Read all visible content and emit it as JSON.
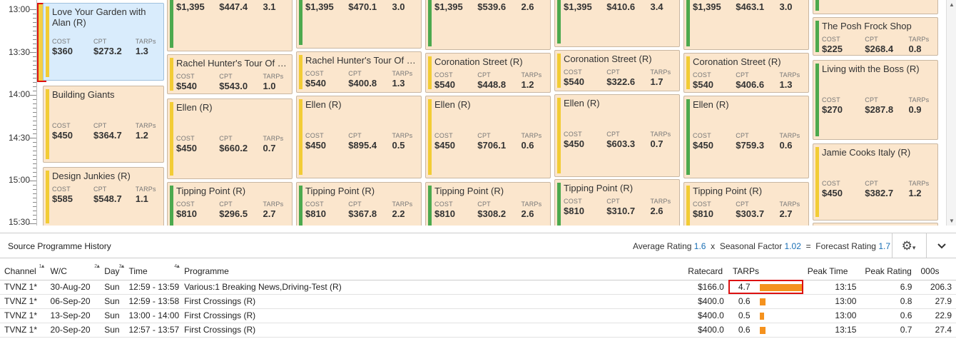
{
  "timeline": {
    "labels": [
      "13:00",
      "13:30",
      "14:00",
      "14:30",
      "15:00",
      "15:30"
    ]
  },
  "columns": [
    {
      "cards": [
        {
          "title": "Love Your Garden with Alan (R)",
          "bar": "yellow",
          "selected": true,
          "cost": "$360",
          "cpt": "$273.2",
          "tarps": "1.3"
        },
        {
          "title": "Building Giants",
          "bar": "yellow",
          "cost": "$450",
          "cpt": "$364.7",
          "tarps": "1.2"
        },
        {
          "title": "Design Junkies (R)",
          "bar": "yellow",
          "cost": "$585",
          "cpt": "$548.7",
          "tarps": "1.1"
        }
      ]
    },
    {
      "cards": [
        {
          "title": "",
          "bar": "green",
          "cost": "$1,395",
          "cpt": "$447.4",
          "tarps": "3.1",
          "top_clipped": true
        },
        {
          "title": "Rachel Hunter's Tour Of B...",
          "bar": "yellow",
          "cost": "$540",
          "cpt": "$543.0",
          "tarps": "1.0"
        },
        {
          "title": "Ellen (R)",
          "bar": "yellow",
          "cost": "$450",
          "cpt": "$660.2",
          "tarps": "0.7"
        },
        {
          "title": "Tipping Point (R)",
          "bar": "green",
          "cost": "$810",
          "cpt": "$296.5",
          "tarps": "2.7"
        }
      ]
    },
    {
      "cards": [
        {
          "title": "",
          "bar": "green",
          "cost": "$1,395",
          "cpt": "$470.1",
          "tarps": "3.0",
          "top_clipped": true
        },
        {
          "title": "Rachel Hunter's Tour Of B...",
          "bar": "yellow",
          "cost": "$540",
          "cpt": "$400.8",
          "tarps": "1.3"
        },
        {
          "title": "Ellen (R)",
          "bar": "yellow",
          "cost": "$450",
          "cpt": "$895.4",
          "tarps": "0.5"
        },
        {
          "title": "Tipping Point (R)",
          "bar": "green",
          "cost": "$810",
          "cpt": "$367.8",
          "tarps": "2.2"
        }
      ]
    },
    {
      "cards": [
        {
          "title": "",
          "bar": "green",
          "cost": "$1,395",
          "cpt": "$539.6",
          "tarps": "2.6",
          "top_clipped": true
        },
        {
          "title": "Coronation Street (R)",
          "bar": "yellow",
          "cost": "$540",
          "cpt": "$448.8",
          "tarps": "1.2"
        },
        {
          "title": "Ellen (R)",
          "bar": "yellow",
          "cost": "$450",
          "cpt": "$706.1",
          "tarps": "0.6"
        },
        {
          "title": "Tipping Point (R)",
          "bar": "green",
          "cost": "$810",
          "cpt": "$308.2",
          "tarps": "2.6"
        }
      ]
    },
    {
      "cards": [
        {
          "title": "",
          "bar": "green",
          "cost": "$1,395",
          "cpt": "$410.6",
          "tarps": "3.4",
          "top_clipped": true
        },
        {
          "title": "Coronation Street (R)",
          "bar": "yellow",
          "cost": "$540",
          "cpt": "$322.6",
          "tarps": "1.7"
        },
        {
          "title": "Ellen (R)",
          "bar": "yellow",
          "cost": "$450",
          "cpt": "$603.3",
          "tarps": "0.7"
        },
        {
          "title": "Tipping Point (R)",
          "bar": "green",
          "cost": "$810",
          "cpt": "$310.7",
          "tarps": "2.6"
        }
      ]
    },
    {
      "cards": [
        {
          "title": "",
          "bar": "green",
          "cost": "$1,395",
          "cpt": "$463.1",
          "tarps": "3.0",
          "top_clipped": true
        },
        {
          "title": "Coronation Street (R)",
          "bar": "yellow",
          "cost": "$540",
          "cpt": "$406.6",
          "tarps": "1.3"
        },
        {
          "title": "Ellen (R)",
          "bar": "green",
          "cost": "$450",
          "cpt": "$759.3",
          "tarps": "0.6"
        },
        {
          "title": "Tipping Point (R)",
          "bar": "yellow",
          "cost": "$810",
          "cpt": "$303.7",
          "tarps": "2.7"
        }
      ]
    },
    {
      "cards": [
        {
          "title": "",
          "bar": "green",
          "top_clipped": true,
          "empty": true
        },
        {
          "title": "The Posh Frock Shop",
          "bar": "green",
          "cost": "$225",
          "cpt": "$268.4",
          "tarps": "0.8"
        },
        {
          "title": "Living with the Boss (R)",
          "bar": "green",
          "cost": "$270",
          "cpt": "$287.8",
          "tarps": "0.9"
        },
        {
          "title": "Jamie Cooks Italy (R)",
          "bar": "yellow",
          "cost": "$450",
          "cpt": "$382.7",
          "tarps": "1.2"
        },
        {
          "title": "",
          "bar": "yellow",
          "empty": true
        }
      ]
    }
  ],
  "stat_labels": {
    "cost": "COST",
    "cpt": "CPT",
    "tarps": "TARPs"
  },
  "history": {
    "title": "Source Programme History",
    "avg_label": "Average Rating",
    "avg_value": "1.6",
    "x": "x",
    "seasonal_label": "Seasonal Factor",
    "seasonal_value": "1.02",
    "eq": "=",
    "forecast_label": "Forecast Rating",
    "forecast_value": "1.7",
    "columns": [
      "Channel",
      "W/C",
      "Day",
      "Time",
      "Programme",
      "Ratecard",
      "TARPs",
      "Peak Time",
      "Peak Rating",
      "000s"
    ],
    "sort_numbers": [
      "1",
      "2",
      "3",
      "4"
    ],
    "rows": [
      {
        "channel": "TVNZ 1*",
        "wc": "30-Aug-20",
        "day": "Sun",
        "time": "12:59 - 13:59",
        "programme": "Various:1 Breaking News,Driving-Test (R)",
        "ratecard": "$166.0",
        "tarps": "4.7",
        "tarps_num": 4.7,
        "peak_time": "13:15",
        "peak_rating": "6.9",
        "thousands": "206.3",
        "highlight": true
      },
      {
        "channel": "TVNZ 1*",
        "wc": "06-Sep-20",
        "day": "Sun",
        "time": "12:59 - 13:58",
        "programme": "First Crossings (R)",
        "ratecard": "$400.0",
        "tarps": "0.6",
        "tarps_num": 0.6,
        "peak_time": "13:00",
        "peak_rating": "0.8",
        "thousands": "27.9"
      },
      {
        "channel": "TVNZ 1*",
        "wc": "13-Sep-20",
        "day": "Sun",
        "time": "13:00 - 14:00",
        "programme": "First Crossings (R)",
        "ratecard": "$400.0",
        "tarps": "0.5",
        "tarps_num": 0.5,
        "peak_time": "13:00",
        "peak_rating": "0.6",
        "thousands": "22.9"
      },
      {
        "channel": "TVNZ 1*",
        "wc": "20-Sep-20",
        "day": "Sun",
        "time": "12:57 - 13:57",
        "programme": "First Crossings (R)",
        "ratecard": "$400.0",
        "tarps": "0.6",
        "tarps_num": 0.6,
        "peak_time": "13:15",
        "peak_rating": "0.7",
        "thousands": "27.4"
      }
    ]
  },
  "colors": {
    "yellow": "#f2cc35",
    "green": "#4ca94e",
    "card": "#fbe6cd",
    "selected": "#d9ecfc",
    "accent": "#1a6fb5",
    "tarp_bar": "#f5921e"
  }
}
